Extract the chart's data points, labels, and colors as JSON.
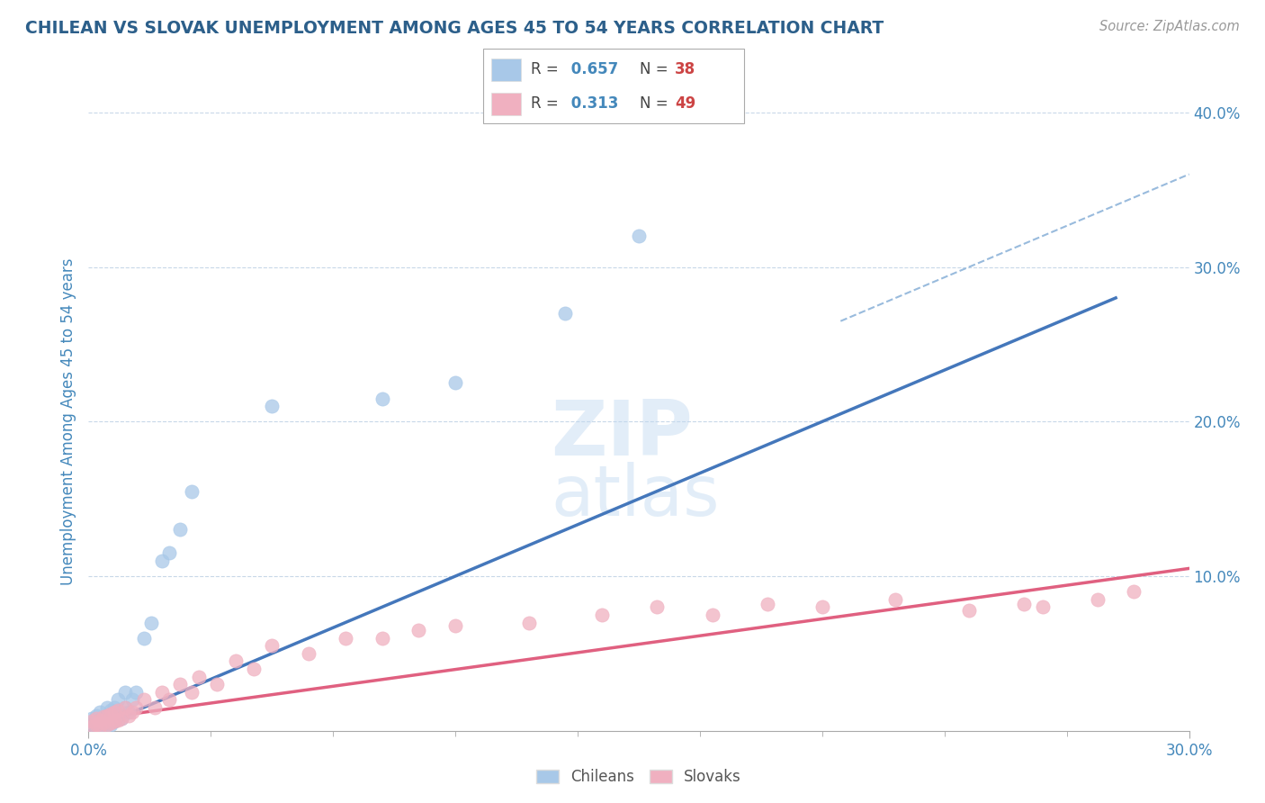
{
  "title": "CHILEAN VS SLOVAK UNEMPLOYMENT AMONG AGES 45 TO 54 YEARS CORRELATION CHART",
  "source": "Source: ZipAtlas.com",
  "ylabel": "Unemployment Among Ages 45 to 54 years",
  "legend_chileans": "Chileans",
  "legend_slovaks": "Slovaks",
  "r_chileans": "0.657",
  "n_chileans": "38",
  "r_slovaks": "0.313",
  "n_slovaks": "49",
  "xlim": [
    0.0,
    0.3
  ],
  "ylim": [
    0.0,
    0.4
  ],
  "color_blue": "#a8c8e8",
  "color_blue_line": "#4477bb",
  "color_pink": "#f0b0c0",
  "color_pink_line": "#e06080",
  "color_blue_dashed": "#99bbdd",
  "color_title": "#2c5f8a",
  "color_axis": "#4488bb",
  "color_grid": "#c8d8e8",
  "watermark_color": "#c8dff0",
  "chilean_x": [
    0.001,
    0.001,
    0.001,
    0.002,
    0.002,
    0.002,
    0.002,
    0.003,
    0.003,
    0.003,
    0.004,
    0.004,
    0.005,
    0.005,
    0.005,
    0.006,
    0.006,
    0.007,
    0.007,
    0.008,
    0.008,
    0.009,
    0.01,
    0.01,
    0.011,
    0.012,
    0.013,
    0.015,
    0.017,
    0.02,
    0.022,
    0.025,
    0.028,
    0.05,
    0.08,
    0.1,
    0.13,
    0.15
  ],
  "chilean_y": [
    0.003,
    0.005,
    0.008,
    0.002,
    0.004,
    0.006,
    0.01,
    0.003,
    0.007,
    0.012,
    0.002,
    0.008,
    0.005,
    0.01,
    0.015,
    0.004,
    0.013,
    0.006,
    0.015,
    0.01,
    0.02,
    0.008,
    0.015,
    0.025,
    0.012,
    0.02,
    0.025,
    0.06,
    0.07,
    0.11,
    0.115,
    0.13,
    0.155,
    0.21,
    0.215,
    0.225,
    0.27,
    0.32
  ],
  "slovak_x": [
    0.001,
    0.001,
    0.002,
    0.002,
    0.003,
    0.003,
    0.004,
    0.004,
    0.005,
    0.005,
    0.006,
    0.006,
    0.007,
    0.007,
    0.008,
    0.008,
    0.009,
    0.01,
    0.011,
    0.012,
    0.013,
    0.015,
    0.018,
    0.02,
    0.022,
    0.025,
    0.028,
    0.03,
    0.035,
    0.04,
    0.045,
    0.05,
    0.06,
    0.07,
    0.08,
    0.09,
    0.1,
    0.12,
    0.14,
    0.155,
    0.17,
    0.185,
    0.2,
    0.22,
    0.24,
    0.255,
    0.26,
    0.275,
    0.285
  ],
  "slovak_y": [
    0.003,
    0.006,
    0.004,
    0.008,
    0.003,
    0.007,
    0.005,
    0.009,
    0.004,
    0.01,
    0.005,
    0.011,
    0.006,
    0.012,
    0.007,
    0.013,
    0.008,
    0.015,
    0.01,
    0.012,
    0.015,
    0.02,
    0.015,
    0.025,
    0.02,
    0.03,
    0.025,
    0.035,
    0.03,
    0.045,
    0.04,
    0.055,
    0.05,
    0.06,
    0.06,
    0.065,
    0.068,
    0.07,
    0.075,
    0.08,
    0.075,
    0.082,
    0.08,
    0.085,
    0.078,
    0.082,
    0.08,
    0.085,
    0.09
  ],
  "blue_line_x": [
    0.0,
    0.28
  ],
  "blue_line_y": [
    0.0,
    0.28
  ],
  "pink_line_x": [
    0.0,
    0.3
  ],
  "pink_line_y": [
    0.007,
    0.105
  ],
  "dash_line_x": [
    0.205,
    0.3
  ],
  "dash_line_y": [
    0.265,
    0.36
  ]
}
